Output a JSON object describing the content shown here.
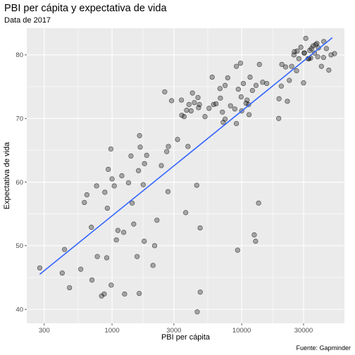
{
  "chart_data": {
    "type": "scatter",
    "title": "PBI per cápita y expectativa de vida",
    "subtitle": "Data de 2017",
    "xlabel": "PBI per cápita",
    "ylabel": "Expectativa de vida",
    "caption": "Fuente: Gapminder",
    "x_scale": "log10",
    "xlim": [
      220,
      62000
    ],
    "ylim": [
      37.8,
      84.2
    ],
    "x_ticks": [
      {
        "value": 300,
        "label": "300"
      },
      {
        "value": 1000,
        "label": "1000"
      },
      {
        "value": 3000,
        "label": "3000"
      },
      {
        "value": 10000,
        "label": "10000"
      },
      {
        "value": 30000,
        "label": "30000"
      }
    ],
    "y_ticks": [
      {
        "value": 40,
        "label": "40"
      },
      {
        "value": 50,
        "label": "50"
      },
      {
        "value": 60,
        "label": "60"
      },
      {
        "value": 70,
        "label": "70"
      },
      {
        "value": 80,
        "label": "80"
      }
    ],
    "grid": true,
    "background": "#ebebeb",
    "grid_color": "#ffffff",
    "point_fill": "#000000",
    "point_fill_opacity": 0.3,
    "trend_color": "#3366ff",
    "trend_line": {
      "x": [
        277,
        50000
      ],
      "y": [
        45.5,
        82.7
      ]
    },
    "points": [
      {
        "x": 277,
        "y": 46.5
      },
      {
        "x": 413,
        "y": 45.7
      },
      {
        "x": 430,
        "y": 49.4
      },
      {
        "x": 470,
        "y": 43.4
      },
      {
        "x": 574,
        "y": 46.3
      },
      {
        "x": 612,
        "y": 56.8
      },
      {
        "x": 640,
        "y": 58.0
      },
      {
        "x": 693,
        "y": 52.9
      },
      {
        "x": 700,
        "y": 44.6
      },
      {
        "x": 760,
        "y": 59.4
      },
      {
        "x": 770,
        "y": 48.3
      },
      {
        "x": 830,
        "y": 42.1
      },
      {
        "x": 870,
        "y": 42.4
      },
      {
        "x": 880,
        "y": 58.4
      },
      {
        "x": 910,
        "y": 48.1
      },
      {
        "x": 920,
        "y": 55.9
      },
      {
        "x": 935,
        "y": 62.0
      },
      {
        "x": 980,
        "y": 65.2
      },
      {
        "x": 985,
        "y": 43.8
      },
      {
        "x": 1000,
        "y": 60.5
      },
      {
        "x": 1040,
        "y": 59.4
      },
      {
        "x": 1080,
        "y": 50.9
      },
      {
        "x": 1110,
        "y": 52.4
      },
      {
        "x": 1190,
        "y": 61.0
      },
      {
        "x": 1230,
        "y": 52.1
      },
      {
        "x": 1250,
        "y": 42.4
      },
      {
        "x": 1340,
        "y": 59.9
      },
      {
        "x": 1400,
        "y": 64.1
      },
      {
        "x": 1430,
        "y": 56.7
      },
      {
        "x": 1470,
        "y": 53.4
      },
      {
        "x": 1560,
        "y": 48.3
      },
      {
        "x": 1600,
        "y": 61.8
      },
      {
        "x": 1620,
        "y": 42.5
      },
      {
        "x": 1630,
        "y": 67.3
      },
      {
        "x": 1650,
        "y": 65.5
      },
      {
        "x": 1740,
        "y": 59.6
      },
      {
        "x": 1770,
        "y": 50.7
      },
      {
        "x": 1780,
        "y": 62.9
      },
      {
        "x": 1850,
        "y": 64.2
      },
      {
        "x": 2070,
        "y": 46.9
      },
      {
        "x": 2130,
        "y": 50.0
      },
      {
        "x": 2220,
        "y": 54.0
      },
      {
        "x": 2400,
        "y": 62.6
      },
      {
        "x": 2550,
        "y": 74.2
      },
      {
        "x": 2640,
        "y": 64.8
      },
      {
        "x": 2720,
        "y": 65.6
      },
      {
        "x": 2700,
        "y": 58.5
      },
      {
        "x": 2880,
        "y": 72.8
      },
      {
        "x": 3200,
        "y": 66.7
      },
      {
        "x": 3430,
        "y": 72.9
      },
      {
        "x": 3450,
        "y": 70.5
      },
      {
        "x": 3600,
        "y": 70.3
      },
      {
        "x": 3700,
        "y": 55.2
      },
      {
        "x": 3760,
        "y": 71.3
      },
      {
        "x": 3850,
        "y": 65.6
      },
      {
        "x": 3920,
        "y": 72.2
      },
      {
        "x": 4070,
        "y": 71.2
      },
      {
        "x": 4170,
        "y": 74.0
      },
      {
        "x": 4310,
        "y": 72.5
      },
      {
        "x": 4500,
        "y": 59.5
      },
      {
        "x": 4540,
        "y": 39.6
      },
      {
        "x": 4600,
        "y": 73.3
      },
      {
        "x": 4650,
        "y": 71.7
      },
      {
        "x": 4720,
        "y": 72.2
      },
      {
        "x": 4780,
        "y": 52.8
      },
      {
        "x": 4790,
        "y": 42.7
      },
      {
        "x": 5210,
        "y": 70.3
      },
      {
        "x": 5600,
        "y": 71.6
      },
      {
        "x": 5920,
        "y": 76.5
      },
      {
        "x": 6070,
        "y": 72.2
      },
      {
        "x": 6340,
        "y": 72.3
      },
      {
        "x": 6800,
        "y": 74.7
      },
      {
        "x": 6850,
        "y": 73.2
      },
      {
        "x": 7100,
        "y": 71.0
      },
      {
        "x": 7200,
        "y": 69.4
      },
      {
        "x": 7450,
        "y": 75.2
      },
      {
        "x": 7450,
        "y": 69.9
      },
      {
        "x": 7800,
        "y": 76.4
      },
      {
        "x": 8200,
        "y": 72.0
      },
      {
        "x": 8850,
        "y": 71.5
      },
      {
        "x": 9100,
        "y": 78.2
      },
      {
        "x": 9100,
        "y": 69.2
      },
      {
        "x": 9300,
        "y": 49.3
      },
      {
        "x": 9420,
        "y": 74.6
      },
      {
        "x": 9800,
        "y": 78.7
      },
      {
        "x": 9900,
        "y": 73.4
      },
      {
        "x": 10000,
        "y": 71.2
      },
      {
        "x": 10300,
        "y": 75.5
      },
      {
        "x": 10800,
        "y": 72.4
      },
      {
        "x": 11000,
        "y": 72.9
      },
      {
        "x": 11300,
        "y": 72.2
      },
      {
        "x": 11400,
        "y": 70.6
      },
      {
        "x": 11600,
        "y": 76.5
      },
      {
        "x": 12100,
        "y": 74.4
      },
      {
        "x": 12500,
        "y": 51.7
      },
      {
        "x": 12800,
        "y": 50.7
      },
      {
        "x": 12900,
        "y": 75.2
      },
      {
        "x": 13500,
        "y": 56.7
      },
      {
        "x": 13700,
        "y": 78.5
      },
      {
        "x": 14500,
        "y": 75.7
      },
      {
        "x": 15600,
        "y": 75.5
      },
      {
        "x": 19400,
        "y": 73.1
      },
      {
        "x": 19300,
        "y": 70.0
      },
      {
        "x": 20200,
        "y": 75.1
      },
      {
        "x": 20400,
        "y": 78.5
      },
      {
        "x": 21800,
        "y": 78.1
      },
      {
        "x": 22500,
        "y": 72.7
      },
      {
        "x": 23300,
        "y": 76.0
      },
      {
        "x": 24300,
        "y": 78.2
      },
      {
        "x": 25300,
        "y": 80.0
      },
      {
        "x": 25500,
        "y": 80.5
      },
      {
        "x": 26500,
        "y": 77.5
      },
      {
        "x": 26800,
        "y": 80.6
      },
      {
        "x": 27600,
        "y": 79.4
      },
      {
        "x": 28600,
        "y": 81.2
      },
      {
        "x": 30000,
        "y": 75.6
      },
      {
        "x": 30300,
        "y": 80.3
      },
      {
        "x": 30500,
        "y": 80.3
      },
      {
        "x": 31200,
        "y": 82.6
      },
      {
        "x": 32500,
        "y": 79.4
      },
      {
        "x": 33000,
        "y": 79.4
      },
      {
        "x": 33500,
        "y": 80.7
      },
      {
        "x": 34000,
        "y": 79.5
      },
      {
        "x": 34500,
        "y": 81.0
      },
      {
        "x": 35500,
        "y": 81.4
      },
      {
        "x": 36400,
        "y": 80.3
      },
      {
        "x": 37200,
        "y": 81.6
      },
      {
        "x": 38000,
        "y": 81.8
      },
      {
        "x": 38600,
        "y": 79.7
      },
      {
        "x": 39100,
        "y": 81.1
      },
      {
        "x": 41200,
        "y": 78.2
      },
      {
        "x": 42800,
        "y": 79.6
      },
      {
        "x": 43000,
        "y": 82.1
      },
      {
        "x": 45000,
        "y": 81.0
      },
      {
        "x": 47000,
        "y": 77.6
      },
      {
        "x": 48900,
        "y": 80.0
      },
      {
        "x": 52000,
        "y": 80.2
      }
    ]
  }
}
